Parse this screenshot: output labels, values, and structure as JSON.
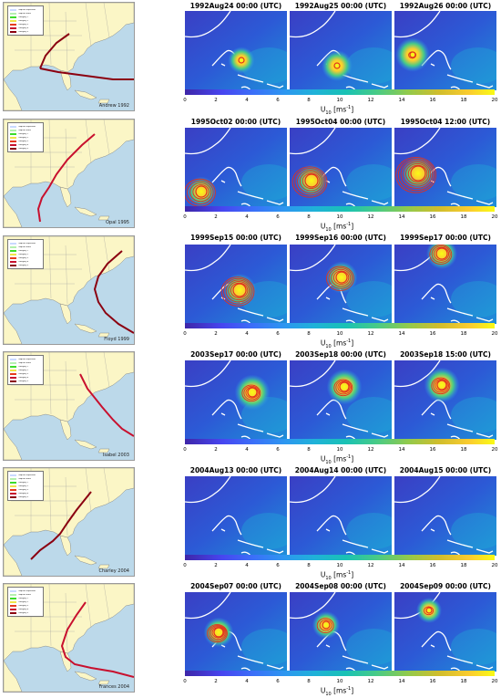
{
  "storms": [
    {
      "name": "Andrew 1992",
      "panel_titles": [
        "1992Aug24 00:00 (UTC)",
        "1992Aug25 00:00 (UTC)",
        "1992Aug26 00:00 (UTC)"
      ],
      "colorbar_label": "U10 [ms-1]"
    },
    {
      "name": "Opal 1995",
      "panel_titles": [
        "1995Oct02 00:00 (UTC)",
        "1995Oct04 00:00 (UTC)",
        "1995Oct04 12:00 (UTC)"
      ],
      "colorbar_label": "U10 [ms-1]"
    },
    {
      "name": "Floyd 1999",
      "panel_titles": [
        "1999Sep15 00:00 (UTC)",
        "1999Sep16 00:00 (UTC)",
        "1999Sep17 00:00 (UTC)"
      ],
      "colorbar_label": "U10 [ms-1]"
    },
    {
      "name": "Isabel 2003",
      "panel_titles": [
        "2003Sep17 00:00 (UTC)",
        "2003Sep18 00:00 (UTC)",
        "2003Sep18 15:00 (UTC)"
      ],
      "colorbar_label": "U10 [ms-1]"
    },
    {
      "name": "Charley 2004",
      "panel_titles": [
        "2004Aug13 00:00 (UTC)",
        "2004Aug14 00:00 (UTC)",
        "2004Aug15 00:00 (UTC)"
      ],
      "colorbar_label": "U10 [ms-1]"
    },
    {
      "name": "Frances 2004",
      "panel_titles": [
        "2004Sep07 00:00 (UTC)",
        "2004Sep08 00:00 (UTC)",
        "2004Sep09 00:00 (UTC)"
      ],
      "colorbar_label": "U10 [ms-1]"
    }
  ],
  "legend_items": [
    {
      "label": "Tropical Depression",
      "color": "#c9d9ff"
    },
    {
      "label": "Tropical Storm",
      "color": "#b5f0b0"
    },
    {
      "label": "Category 1",
      "color": "#3cdc2a"
    },
    {
      "label": "Category 2",
      "color": "#f0e54a"
    },
    {
      "label": "Category 3",
      "color": "#e63a1e"
    },
    {
      "label": "Category 4",
      "color": "#c8102e"
    },
    {
      "label": "Category 5",
      "color": "#8b0010"
    }
  ],
  "colorbar_ticks": [
    "0",
    "2",
    "4",
    "6",
    "8",
    "10",
    "12",
    "14",
    "16",
    "18",
    "20"
  ],
  "colorbar_range": [
    0,
    20
  ],
  "colors": {
    "ocean": "#bcd9ea",
    "land": "#fbf6c6",
    "coast": "#ffffff",
    "wind_low": "#3e26a8",
    "wind_high": "#f9fb15",
    "contour": "#e1301e"
  },
  "cyclone_marks": [
    [
      {
        "present": true,
        "intensity": 0.55,
        "rings": 0
      },
      {
        "present": true,
        "intensity": 0.75,
        "rings": 0
      },
      {
        "present": true,
        "intensity": 0.9,
        "rings": 1
      }
    ],
    [
      {
        "present": true,
        "intensity": 0.7,
        "rings": 4
      },
      {
        "present": true,
        "intensity": 0.8,
        "rings": 5
      },
      {
        "present": true,
        "intensity": 0.85,
        "rings": 6
      }
    ],
    [
      {
        "present": true,
        "intensity": 0.85,
        "rings": 5
      },
      {
        "present": true,
        "intensity": 0.8,
        "rings": 4
      },
      {
        "present": true,
        "intensity": 0.75,
        "rings": 3
      }
    ],
    [
      {
        "present": true,
        "intensity": 0.95,
        "rings": 3
      },
      {
        "present": true,
        "intensity": 0.95,
        "rings": 3
      },
      {
        "present": true,
        "intensity": 0.95,
        "rings": 3
      }
    ],
    [
      {
        "present": false,
        "intensity": 0.2,
        "rings": 0
      },
      {
        "present": false,
        "intensity": 0.2,
        "rings": 0
      },
      {
        "present": false,
        "intensity": 0.2,
        "rings": 0
      }
    ],
    [
      {
        "present": true,
        "intensity": 0.7,
        "rings": 4
      },
      {
        "present": true,
        "intensity": 0.6,
        "rings": 2
      },
      {
        "present": true,
        "intensity": 0.5,
        "rings": 1
      }
    ]
  ]
}
